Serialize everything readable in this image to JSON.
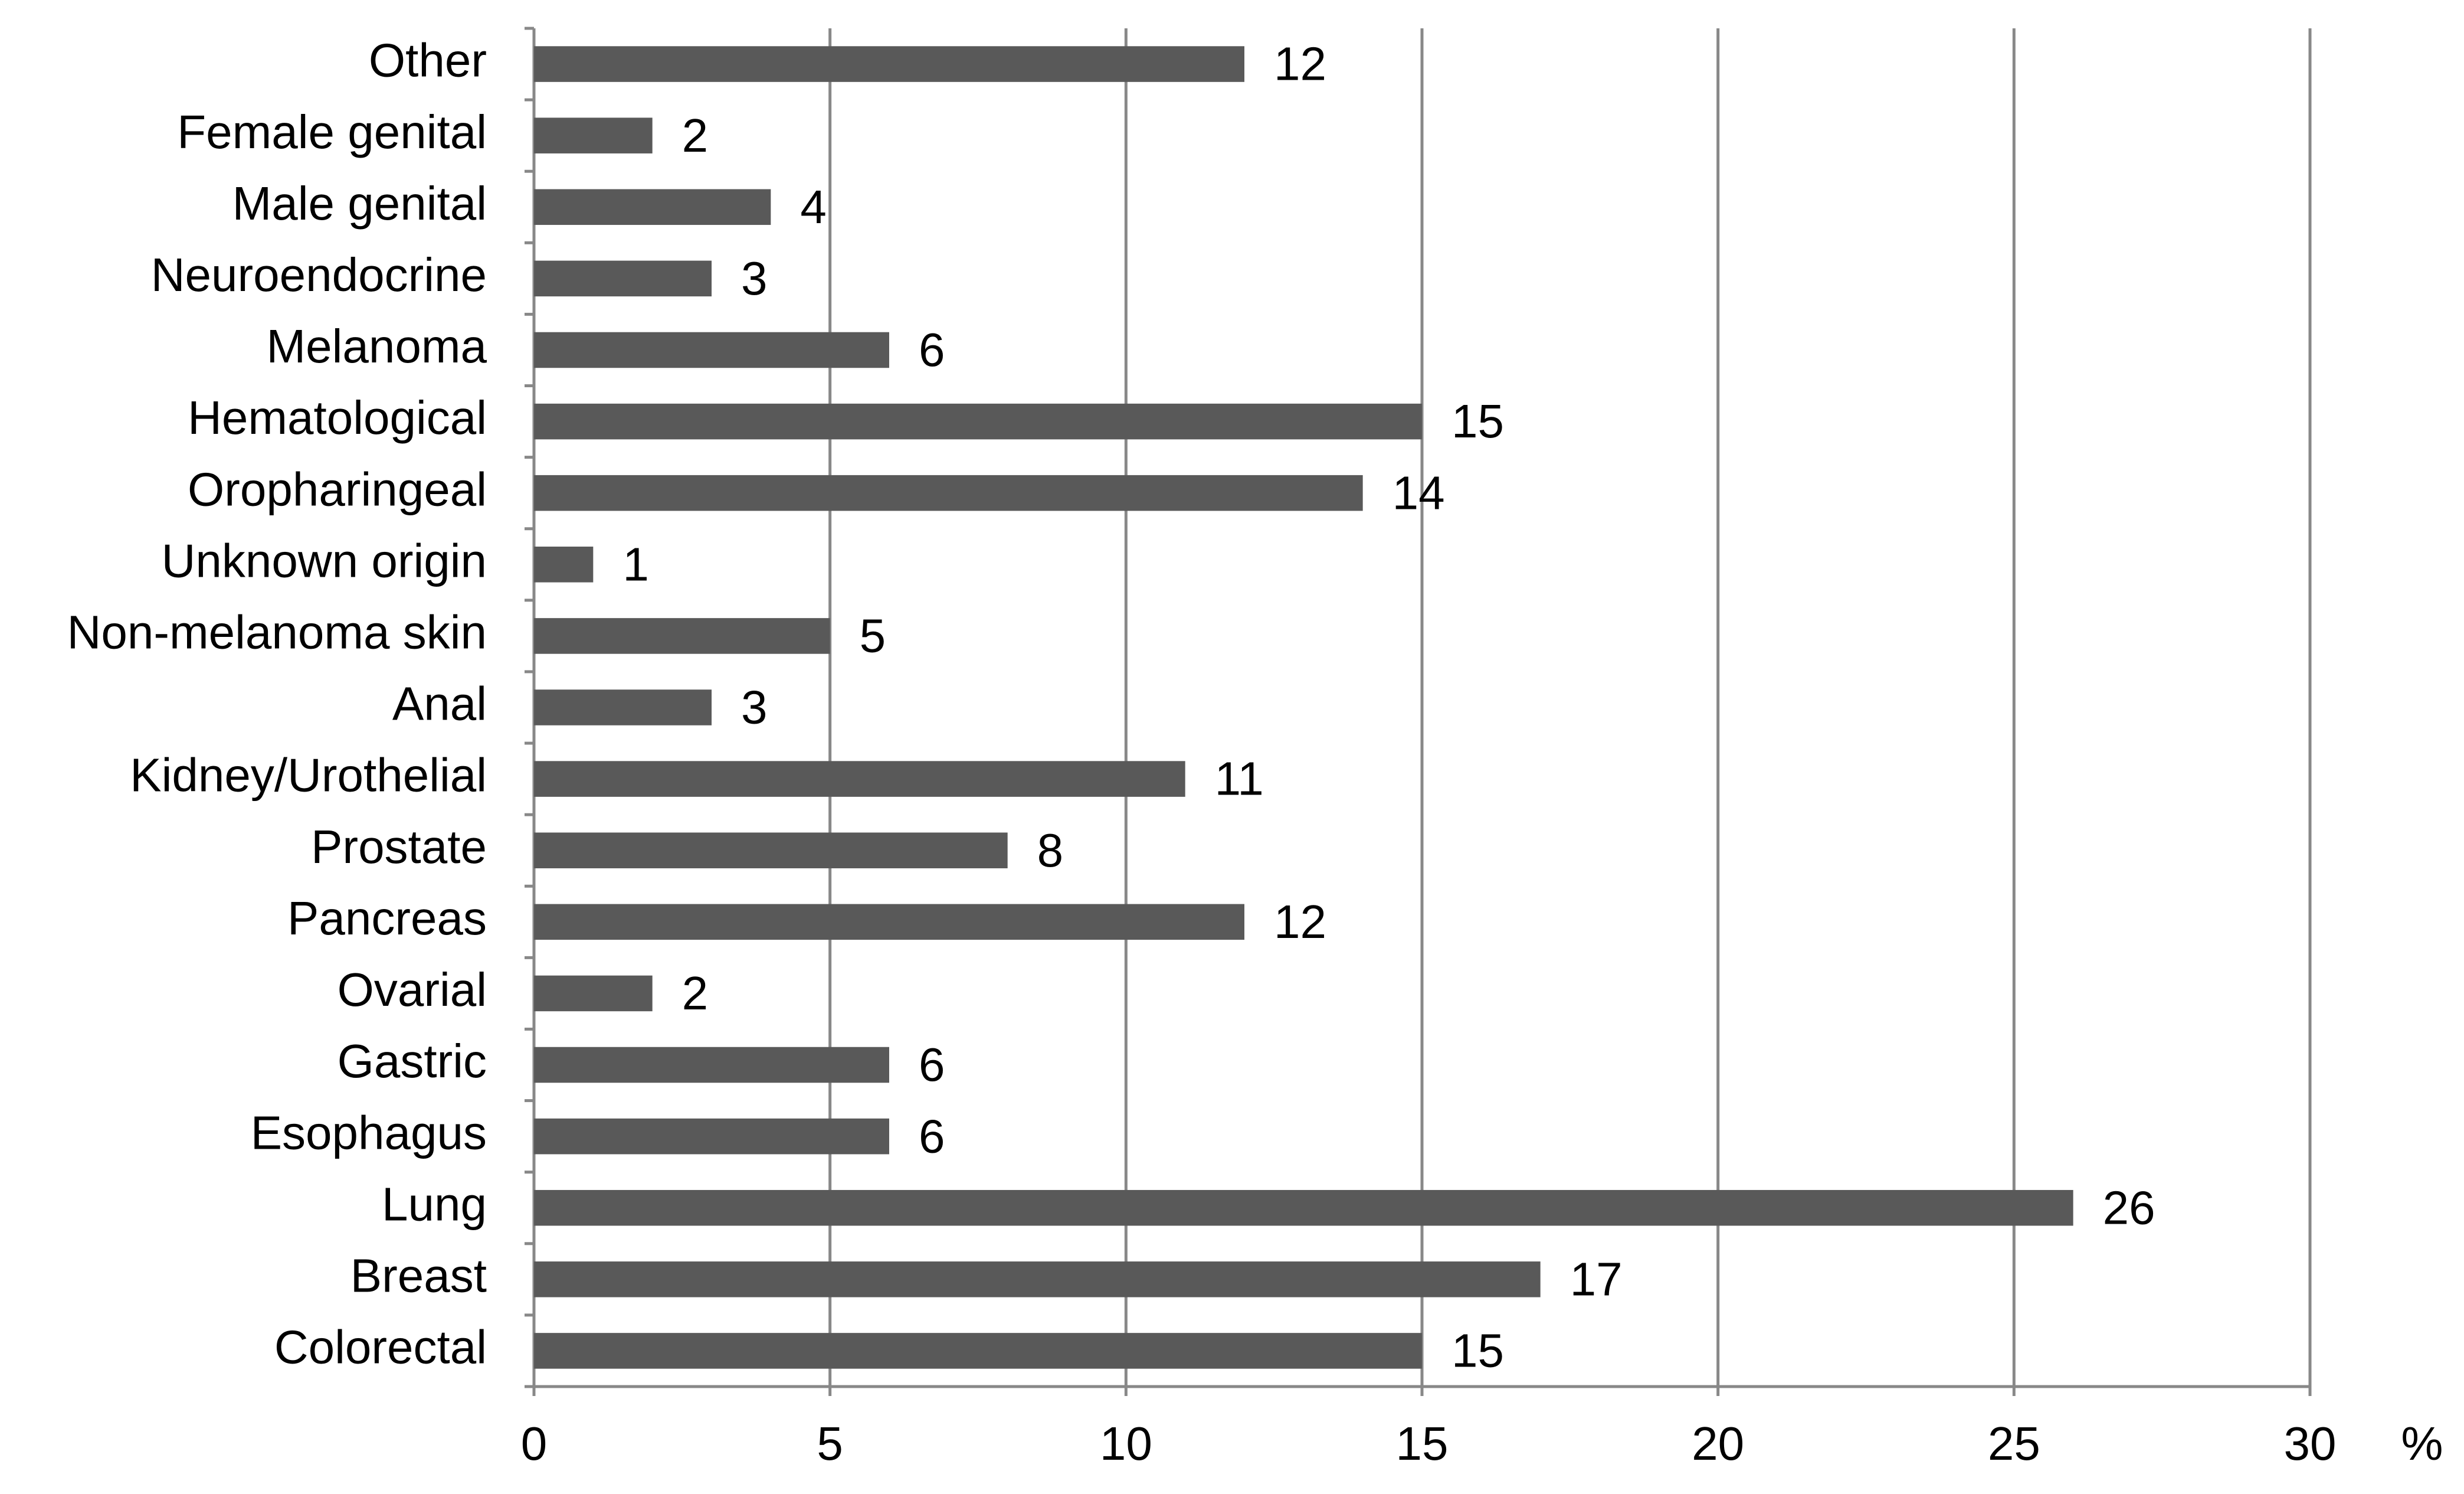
{
  "chart_data": {
    "type": "bar",
    "orientation": "horizontal",
    "categories": [
      "Other",
      "Female genital",
      "Male genital",
      "Neuroendocrine",
      "Melanoma",
      "Hematological",
      "Oropharingeal",
      "Unknown origin",
      "Non-melanoma skin",
      "Anal",
      "Kidney/Urothelial",
      "Prostate",
      "Pancreas",
      "Ovarial",
      "Gastric",
      "Esophagus",
      "Lung",
      "Breast",
      "Colorectal"
    ],
    "values": [
      12,
      2,
      4,
      3,
      6,
      15,
      14,
      1,
      5,
      3,
      11,
      8,
      12,
      2,
      6,
      6,
      26,
      17,
      15
    ],
    "color": "#595959",
    "x_label": "%",
    "xlim": [
      0,
      30
    ],
    "xticks": [
      0,
      5,
      10,
      15,
      20,
      25,
      30
    ],
    "grid": true
  }
}
